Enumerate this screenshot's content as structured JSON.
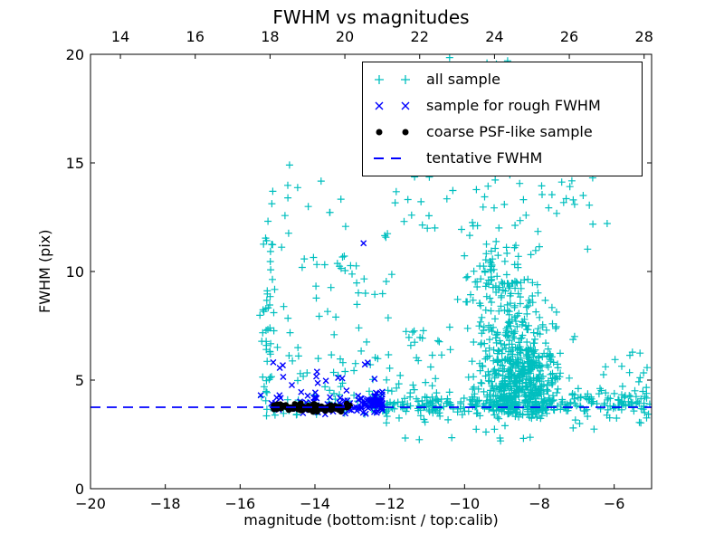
{
  "window": {
    "title": "FWHM vs magnitudes"
  },
  "colors": {
    "all": "#00bfbf",
    "rough": "#0000ff",
    "psf": "#000000",
    "line": "#0000ff",
    "frame": "#000000",
    "background": "#ffffff"
  },
  "legend": {
    "entries": [
      {
        "label": "all sample",
        "marker": "plus",
        "color_key": "all"
      },
      {
        "label": "sample for rough FWHM",
        "marker": "cross",
        "color_key": "rough"
      },
      {
        "label": "coarse PSF-like sample",
        "marker": "dot",
        "color_key": "psf"
      },
      {
        "label": "tentative FWHM",
        "marker": "dash",
        "color_key": "line"
      }
    ]
  },
  "chart_data": {
    "type": "scatter",
    "title": "FWHM vs magnitudes",
    "xlabel": "magnitude (bottom:isnt / top:calib)",
    "ylabel": "FWHM (pix)",
    "x_range": [
      -20,
      -5
    ],
    "x_top_range": [
      13.2,
      28.2
    ],
    "y_range": [
      0,
      20
    ],
    "x_ticks": {
      "values": [
        -20,
        -18,
        -16,
        -14,
        -12,
        -10,
        -8,
        -6
      ],
      "labels": [
        "−20",
        "−18",
        "−16",
        "−14",
        "−12",
        "−10",
        "−8",
        "−6"
      ]
    },
    "x_top_ticks": {
      "values": [
        14,
        16,
        18,
        20,
        22,
        24,
        26,
        28
      ],
      "labels": [
        "14",
        "16",
        "18",
        "20",
        "22",
        "24",
        "26",
        "28"
      ]
    },
    "y_ticks": {
      "values": [
        0,
        5,
        10,
        15,
        20
      ],
      "labels": [
        "0",
        "5",
        "10",
        "15",
        "20"
      ]
    },
    "grid": false,
    "legend_position": "upper right",
    "seed": 42,
    "series": [
      {
        "name": "all sample",
        "marker": "plus",
        "color_key": "all",
        "clusters": [
          {
            "n": 40,
            "x": {
              "t": "g",
              "m": -15.25,
              "s": 0.12,
              "min": -15.5,
              "max": -14.95
            },
            "y": {
              "t": "u",
              "a": 3.3,
              "b": 9.0
            }
          },
          {
            "n": 10,
            "x": {
              "t": "g",
              "m": -15.15,
              "s": 0.15,
              "min": -15.5,
              "max": -14.8
            },
            "y": {
              "t": "u",
              "a": 9.0,
              "b": 12.7
            }
          },
          {
            "n": 60,
            "x": {
              "t": "u",
              "a": -14.9,
              "b": -11.9
            },
            "y": {
              "t": "pu",
              "a": 3.4,
              "b": 6.8,
              "p": 1.6
            }
          },
          {
            "n": 35,
            "x": {
              "t": "u",
              "a": -14.9,
              "b": -11.9
            },
            "y": {
              "t": "u",
              "a": 6.8,
              "b": 10.8
            }
          },
          {
            "n": 16,
            "x": {
              "t": "u",
              "a": -15.4,
              "b": -12.9
            },
            "y": {
              "t": "u",
              "a": 10.8,
              "b": 14.5
            }
          },
          {
            "n": 320,
            "x": {
              "t": "u",
              "a": -12.55,
              "b": -5.05
            },
            "y": {
              "t": "g",
              "m": 3.9,
              "s": 0.3,
              "min": 3.15,
              "max": 4.7
            }
          },
          {
            "n": 22,
            "x": {
              "t": "u",
              "a": -12.3,
              "b": -5.1
            },
            "y": {
              "t": "u",
              "a": 2.15,
              "b": 3.3
            }
          },
          {
            "n": 500,
            "x": {
              "t": "g",
              "m": -8.55,
              "s": 0.55,
              "min": -10.3,
              "max": -6.4
            },
            "y": {
              "t": "g",
              "m": 5.1,
              "s": 1.15,
              "min": 3.2,
              "max": 9.2
            }
          },
          {
            "n": 90,
            "x": {
              "t": "g",
              "m": -8.75,
              "s": 0.6,
              "min": -10.3,
              "max": -6.8
            },
            "y": {
              "t": "u",
              "a": 7.0,
              "b": 9.5
            }
          },
          {
            "n": 55,
            "x": {
              "t": "g",
              "m": -9.05,
              "s": 0.45,
              "min": -10.2,
              "max": -7.9
            },
            "y": {
              "t": "u",
              "a": 9.2,
              "b": 11.3
            }
          },
          {
            "n": 48,
            "x": {
              "t": "u",
              "a": -12.2,
              "b": -6.6
            },
            "y": {
              "t": "u",
              "a": 11.3,
              "b": 14.5
            }
          },
          {
            "n": 20,
            "x": {
              "t": "u",
              "a": -6.5,
              "b": -5.1
            },
            "y": {
              "t": "u",
              "a": 4.0,
              "b": 6.3
            }
          },
          {
            "n": 25,
            "x": {
              "t": "u",
              "a": -11.9,
              "b": -10.3
            },
            "y": {
              "t": "u",
              "a": 4.6,
              "b": 7.5
            }
          },
          {
            "n": 8,
            "x": {
              "t": "u",
              "a": -7.2,
              "b": -6.0
            },
            "y": {
              "t": "u",
              "a": 10.0,
              "b": 14.4
            }
          }
        ],
        "points": [
          [
            -14.68,
            14.9
          ],
          [
            -10.4,
            19.85
          ],
          [
            -9.4,
            19.6
          ],
          [
            -9.15,
            19.55
          ],
          [
            -8.85,
            19.7
          ]
        ]
      },
      {
        "name": "sample for rough FWHM",
        "marker": "cross",
        "color_key": "rough",
        "clusters": [
          {
            "n": 120,
            "x": {
              "t": "pu",
              "a": -12.2,
              "b": -15.2,
              "p": 2.2
            },
            "y": {
              "t": "g",
              "m": 3.9,
              "s": 0.25,
              "min": 3.35,
              "max": 4.6
            }
          },
          {
            "n": 14,
            "x": {
              "t": "u",
              "a": -15.3,
              "b": -12.4
            },
            "y": {
              "t": "u",
              "a": 4.6,
              "b": 5.9
            }
          }
        ],
        "points": [
          [
            -12.7,
            11.3
          ],
          [
            -15.45,
            4.3
          ]
        ]
      },
      {
        "name": "coarse PSF-like sample",
        "marker": "dot",
        "color_key": "psf",
        "clusters": [
          {
            "n": 110,
            "x": {
              "t": "u",
              "a": -15.12,
              "b": -13.05
            },
            "y": {
              "t": "g",
              "m": 3.73,
              "s": 0.09,
              "min": 3.5,
              "max": 3.95
            }
          }
        ],
        "points": []
      }
    ],
    "trend_line": {
      "name": "tentative FWHM",
      "y": 3.75,
      "style": "dashed",
      "color_key": "line",
      "x_start": -20,
      "x_end": -5
    }
  }
}
